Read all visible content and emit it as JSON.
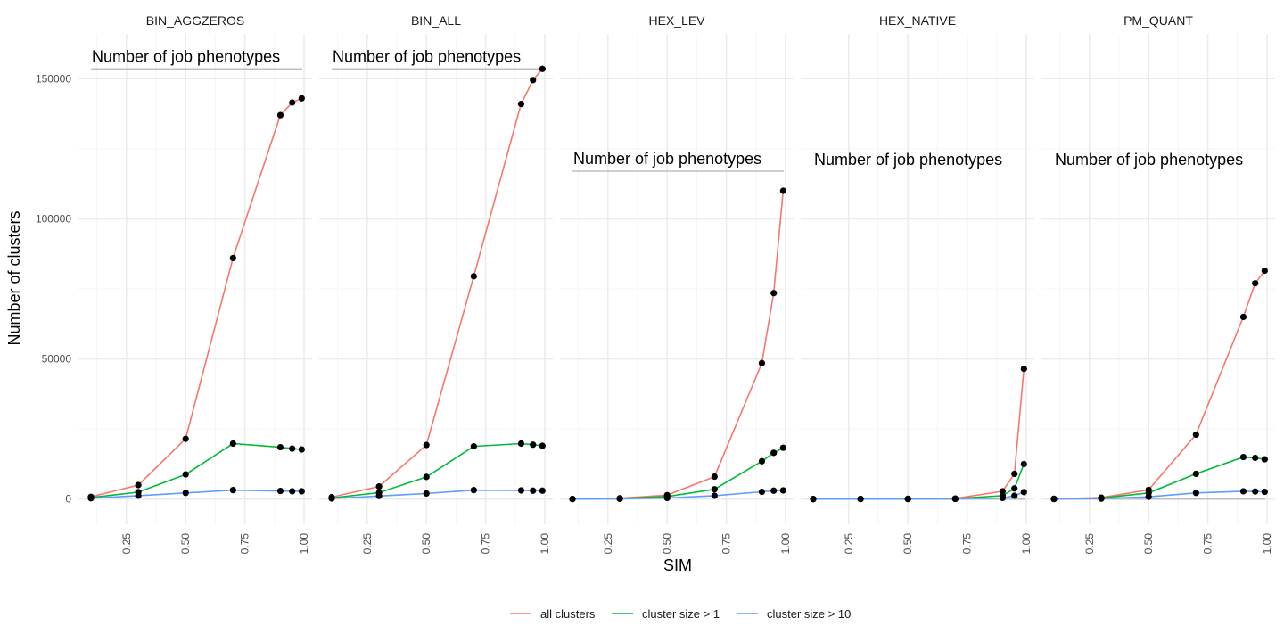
{
  "chart_data": {
    "type": "line",
    "xlabel": "SIM",
    "ylabel": "Number of clusters",
    "x": [
      0.1,
      0.3,
      0.5,
      0.7,
      0.9,
      0.95,
      0.99
    ],
    "xlim": [
      0.1,
      1.0
    ],
    "ylim": [
      -9000,
      166000
    ],
    "x_ticks": [
      0.25,
      0.5,
      0.75,
      1.0
    ],
    "x_tick_labels": [
      "0.25",
      "0.50",
      "0.75",
      "1.00"
    ],
    "y_ticks": [
      0,
      50000,
      100000,
      150000
    ],
    "y_tick_labels": [
      "0",
      "50000",
      "100000",
      "150000"
    ],
    "grid": true,
    "legend_position": "bottom",
    "annotation_text": "Number of job phenotypes",
    "colors": {
      "all clusters": "#F8766D",
      "cluster size > 1": "#00BA38",
      "cluster size > 10": "#619CFF",
      "points": "#000000",
      "grid_major": "#EBEBEB",
      "grid_minor": "#F5F5F5",
      "annotation_line": "#BFBFBF"
    },
    "legend": [
      "all clusters",
      "cluster size > 1",
      "cluster size > 10"
    ],
    "facets": [
      {
        "title": "BIN_AGGZEROS",
        "annotation_y": 153500,
        "annotation_line": true,
        "series": [
          {
            "name": "all clusters",
            "values": [
              800,
              5000,
              21500,
              86000,
              137000,
              141500,
              143000
            ]
          },
          {
            "name": "cluster size > 1",
            "values": [
              500,
              2500,
              8800,
              19800,
              18500,
              18000,
              17700
            ]
          },
          {
            "name": "cluster size > 10",
            "values": [
              300,
              1200,
              2200,
              3200,
              2900,
              2800,
              2800
            ]
          }
        ]
      },
      {
        "title": "BIN_ALL",
        "annotation_y": 153500,
        "annotation_line": true,
        "series": [
          {
            "name": "all clusters",
            "values": [
              700,
              4500,
              19300,
              79500,
              141000,
              149500,
              153500
            ]
          },
          {
            "name": "cluster size > 1",
            "values": [
              400,
              2300,
              7900,
              18800,
              19800,
              19400,
              19000
            ]
          },
          {
            "name": "cluster size > 10",
            "values": [
              200,
              1100,
              2000,
              3200,
              3100,
              3000,
              3000
            ]
          }
        ]
      },
      {
        "title": "HEX_LEV",
        "annotation_y": 117000,
        "annotation_line": true,
        "series": [
          {
            "name": "all clusters",
            "values": [
              50,
              300,
              1400,
              8000,
              48500,
              73500,
              110000
            ]
          },
          {
            "name": "cluster size > 1",
            "values": [
              20,
              150,
              900,
              3500,
              13500,
              16500,
              18300
            ]
          },
          {
            "name": "cluster size > 10",
            "values": [
              10,
              80,
              400,
              1200,
              2600,
              3000,
              3100
            ]
          }
        ]
      },
      {
        "title": "HEX_NATIVE",
        "annotation_y": 0,
        "annotation_line": true,
        "series": [
          {
            "name": "all clusters",
            "values": [
              20,
              50,
              100,
              200,
              2800,
              9000,
              46500
            ]
          },
          {
            "name": "cluster size > 1",
            "values": [
              10,
              30,
              60,
              120,
              1200,
              3800,
              12500
            ]
          },
          {
            "name": "cluster size > 10",
            "values": [
              5,
              15,
              30,
              60,
              400,
              1200,
              2500
            ]
          }
        ]
      },
      {
        "title": "PM_QUANT",
        "annotation_y": 0,
        "annotation_line": true,
        "series": [
          {
            "name": "all clusters",
            "values": [
              100,
              500,
              3300,
              23000,
              65000,
              77000,
              81500
            ]
          },
          {
            "name": "cluster size > 1",
            "values": [
              60,
              350,
              2200,
              9000,
              15000,
              14700,
              14200
            ]
          },
          {
            "name": "cluster size > 10",
            "values": [
              30,
              150,
              800,
              2200,
              2800,
              2700,
              2600
            ]
          }
        ]
      }
    ]
  }
}
